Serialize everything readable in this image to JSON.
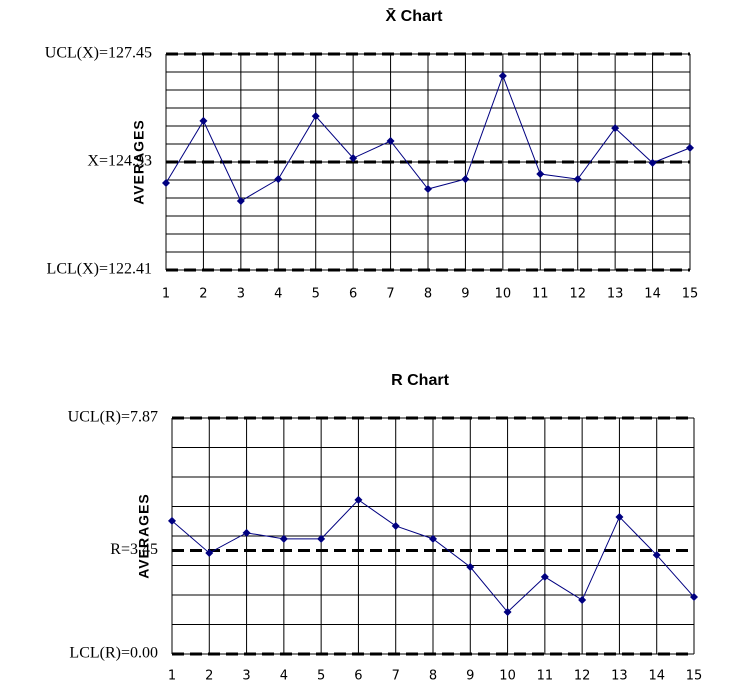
{
  "chart_data": [
    {
      "type": "line",
      "title": "X̄ Chart",
      "y_label": "AVERAGES",
      "categories": [
        "1",
        "2",
        "3",
        "4",
        "5",
        "6",
        "7",
        "8",
        "9",
        "10",
        "11",
        "12",
        "13",
        "14",
        "15"
      ],
      "values": [
        124.44,
        125.89,
        124.02,
        124.53,
        126.0,
        125.02,
        125.42,
        124.3,
        124.53,
        126.94,
        124.65,
        124.53,
        125.72,
        124.91,
        125.26
      ],
      "color": "#000080",
      "ylim": [
        122.41,
        127.45
      ],
      "yticks": [
        {
          "value": 122.41,
          "label": "LCL(X)=122.41"
        },
        {
          "value": 124.93,
          "label": "X=124.93"
        },
        {
          "value": 127.45,
          "label": "UCL(X)=127.45"
        }
      ],
      "grid": true
    },
    {
      "type": "line",
      "title": "R Chart",
      "y_label": "AVERAGES",
      "categories": [
        "1",
        "2",
        "3",
        "4",
        "5",
        "6",
        "7",
        "8",
        "9",
        "10",
        "11",
        "12",
        "13",
        "14",
        "15"
      ],
      "values": [
        4.44,
        3.37,
        4.04,
        3.84,
        3.84,
        5.14,
        4.27,
        3.84,
        2.9,
        1.4,
        2.57,
        1.8,
        4.57,
        3.3,
        1.9
      ],
      "color": "#000080",
      "ylim": [
        0,
        7.87
      ],
      "yticks": [
        {
          "value": 0,
          "label": "LCL(R)=0.00"
        },
        {
          "value": 3.45,
          "label": "R=3.45"
        },
        {
          "value": 7.87,
          "label": "UCL(R)=7.87"
        }
      ],
      "grid": true
    }
  ]
}
